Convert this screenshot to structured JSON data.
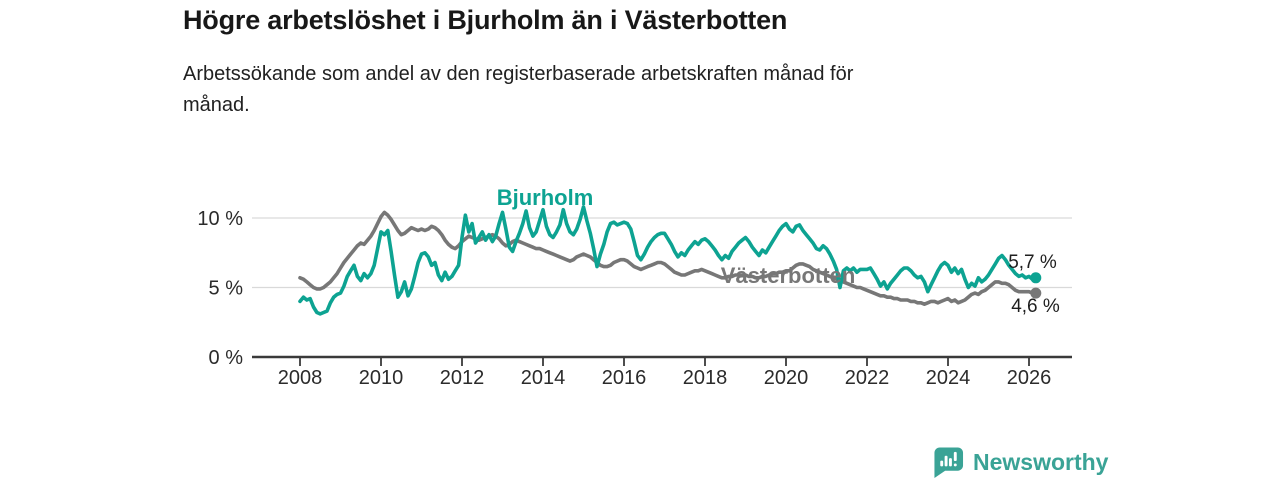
{
  "header": {
    "title": "Högre arbetslöshet i Bjurholm än i Västerbotten",
    "subtitle_lines": [
      "Arbetssökande som andel av den registerbaserade arbetskraften månad för",
      "månad."
    ]
  },
  "chart_data": {
    "type": "line",
    "title": "Högre arbetslöshet i Bjurholm än i Västerbotten",
    "subtitle": "Arbetssökande som andel av den registerbaserade arbetskraften månad för månad.",
    "unit": "%",
    "x_start_year": 2008,
    "x_step_months": 1,
    "x_end_label_approx": "2026",
    "ylim": [
      0,
      12
    ],
    "grid": true,
    "legend_position": "inline-labels",
    "axis_color": "#3a3a3a",
    "grid_color": "#d9d9d9",
    "tick_text_color": "#2b2b2b",
    "end_label_text_color": "#1f1f1f",
    "yticks": [
      {
        "value": 0,
        "label": "0 %"
      },
      {
        "value": 5,
        "label": "5 %"
      },
      {
        "value": 10,
        "label": "10 %"
      }
    ],
    "xticks": [
      2008,
      2010,
      2012,
      2014,
      2016,
      2018,
      2020,
      2022,
      2024,
      2026
    ],
    "series": [
      {
        "name": "Bjurholm",
        "color": "#0da392",
        "label_year": 2014.05,
        "label_value": 10.95,
        "end_label": "5,7 %",
        "end_value": 5.7,
        "values": [
          4.0,
          4.3,
          4.1,
          4.2,
          3.6,
          3.2,
          3.1,
          3.2,
          3.3,
          3.9,
          4.3,
          4.5,
          4.6,
          5.1,
          5.8,
          6.2,
          6.6,
          5.8,
          5.5,
          6.0,
          5.7,
          6.0,
          6.6,
          7.8,
          9.0,
          8.8,
          9.1,
          7.6,
          5.9,
          4.3,
          4.7,
          5.4,
          4.4,
          4.9,
          5.8,
          6.8,
          7.4,
          7.5,
          7.2,
          6.6,
          6.8,
          5.9,
          5.5,
          6.1,
          5.6,
          5.8,
          6.2,
          6.6,
          8.6,
          10.2,
          9.0,
          9.6,
          8.2,
          8.6,
          9.0,
          8.4,
          8.8,
          8.3,
          8.7,
          9.6,
          10.4,
          9.2,
          7.9,
          7.6,
          8.3,
          8.9,
          9.6,
          10.5,
          9.3,
          8.7,
          9.0,
          9.8,
          10.6,
          9.4,
          8.8,
          8.6,
          9.0,
          9.5,
          10.6,
          9.6,
          9.0,
          8.8,
          9.2,
          9.9,
          10.8,
          9.8,
          8.9,
          7.8,
          6.5,
          7.4,
          8.1,
          9.0,
          9.6,
          9.7,
          9.5,
          9.6,
          9.7,
          9.6,
          9.2,
          8.3,
          7.3,
          7.0,
          7.4,
          7.9,
          8.3,
          8.6,
          8.8,
          8.9,
          8.9,
          8.5,
          8.1,
          7.6,
          7.2,
          7.5,
          7.3,
          7.7,
          8.0,
          8.3,
          8.1,
          8.4,
          8.5,
          8.3,
          8.0,
          7.7,
          7.3,
          7.0,
          7.3,
          7.1,
          7.6,
          7.9,
          8.2,
          8.4,
          8.6,
          8.3,
          7.9,
          7.6,
          7.3,
          7.7,
          7.5,
          7.9,
          8.3,
          8.7,
          9.1,
          9.4,
          9.6,
          9.2,
          9.0,
          9.4,
          9.5,
          9.1,
          8.8,
          8.5,
          8.2,
          7.8,
          7.7,
          8.0,
          7.8,
          7.4,
          6.9,
          6.3,
          5.0,
          6.2,
          6.4,
          6.2,
          6.4,
          6.1,
          6.3,
          6.3,
          6.3,
          6.4,
          6.0,
          5.6,
          5.1,
          5.4,
          4.9,
          5.3,
          5.6,
          5.9,
          6.2,
          6.4,
          6.4,
          6.2,
          5.9,
          5.7,
          5.8,
          5.4,
          4.7,
          5.2,
          5.7,
          6.2,
          6.6,
          6.8,
          6.6,
          6.1,
          6.4,
          6.0,
          6.3,
          5.6,
          5.0,
          5.3,
          5.1,
          5.7,
          5.4,
          5.6,
          5.9,
          6.3,
          6.7,
          7.1,
          7.3,
          7.0,
          6.6,
          6.3,
          6.0,
          5.8,
          5.9,
          5.7,
          5.8,
          5.6,
          5.7
        ]
      },
      {
        "name": "Västerbotten",
        "color": "#777777",
        "label_year": 2020.05,
        "label_value": 5.32,
        "end_label": "4,6 %",
        "end_value": 4.6,
        "values": [
          5.7,
          5.6,
          5.4,
          5.2,
          5.0,
          4.9,
          4.9,
          5.0,
          5.2,
          5.4,
          5.7,
          6.0,
          6.4,
          6.8,
          7.1,
          7.4,
          7.7,
          8.0,
          8.2,
          8.1,
          8.4,
          8.7,
          9.1,
          9.6,
          10.1,
          10.4,
          10.2,
          9.9,
          9.5,
          9.1,
          8.8,
          8.9,
          9.1,
          9.3,
          9.2,
          9.1,
          9.2,
          9.1,
          9.2,
          9.4,
          9.3,
          9.1,
          8.8,
          8.4,
          8.1,
          7.9,
          7.8,
          8.0,
          8.3,
          8.5,
          8.7,
          8.6,
          8.5,
          8.4,
          8.5,
          8.6,
          8.7,
          8.8,
          8.7,
          8.5,
          8.2,
          8.0,
          8.1,
          8.3,
          8.4,
          8.3,
          8.2,
          8.1,
          8.0,
          7.9,
          7.8,
          7.8,
          7.7,
          7.6,
          7.5,
          7.4,
          7.3,
          7.2,
          7.1,
          7.0,
          6.9,
          7.0,
          7.2,
          7.3,
          7.4,
          7.3,
          7.2,
          7.0,
          6.8,
          6.6,
          6.5,
          6.5,
          6.6,
          6.8,
          6.9,
          7.0,
          7.0,
          6.9,
          6.7,
          6.5,
          6.4,
          6.3,
          6.4,
          6.5,
          6.6,
          6.7,
          6.8,
          6.8,
          6.7,
          6.5,
          6.3,
          6.1,
          6.0,
          5.9,
          5.9,
          6.0,
          6.1,
          6.2,
          6.2,
          6.3,
          6.2,
          6.1,
          6.0,
          5.9,
          5.8,
          5.7,
          5.7,
          5.8,
          5.8,
          5.9,
          5.9,
          5.9,
          5.9,
          5.8,
          5.8,
          5.7,
          5.7,
          5.8,
          5.8,
          5.9,
          6.0,
          6.0,
          6.1,
          6.1,
          6.2,
          6.2,
          6.4,
          6.6,
          6.7,
          6.7,
          6.6,
          6.5,
          6.3,
          6.2,
          6.1,
          6.0,
          5.9,
          5.8,
          5.7,
          5.6,
          5.5,
          5.4,
          5.3,
          5.2,
          5.1,
          5.0,
          5.0,
          4.9,
          4.8,
          4.7,
          4.6,
          4.5,
          4.4,
          4.4,
          4.3,
          4.3,
          4.2,
          4.2,
          4.1,
          4.1,
          4.1,
          4.0,
          4.0,
          3.9,
          3.9,
          3.8,
          3.9,
          4.0,
          4.0,
          3.9,
          4.0,
          4.1,
          4.2,
          4.0,
          4.1,
          3.9,
          4.0,
          4.1,
          4.3,
          4.5,
          4.6,
          4.5,
          4.7,
          4.8,
          5.0,
          5.2,
          5.4,
          5.4,
          5.3,
          5.3,
          5.2,
          5.0,
          4.8,
          4.7,
          4.7,
          4.7,
          4.7,
          4.6,
          4.6
        ]
      }
    ]
  },
  "footer": {
    "brand": "Newsworthy",
    "brand_color": "#3aa396"
  }
}
